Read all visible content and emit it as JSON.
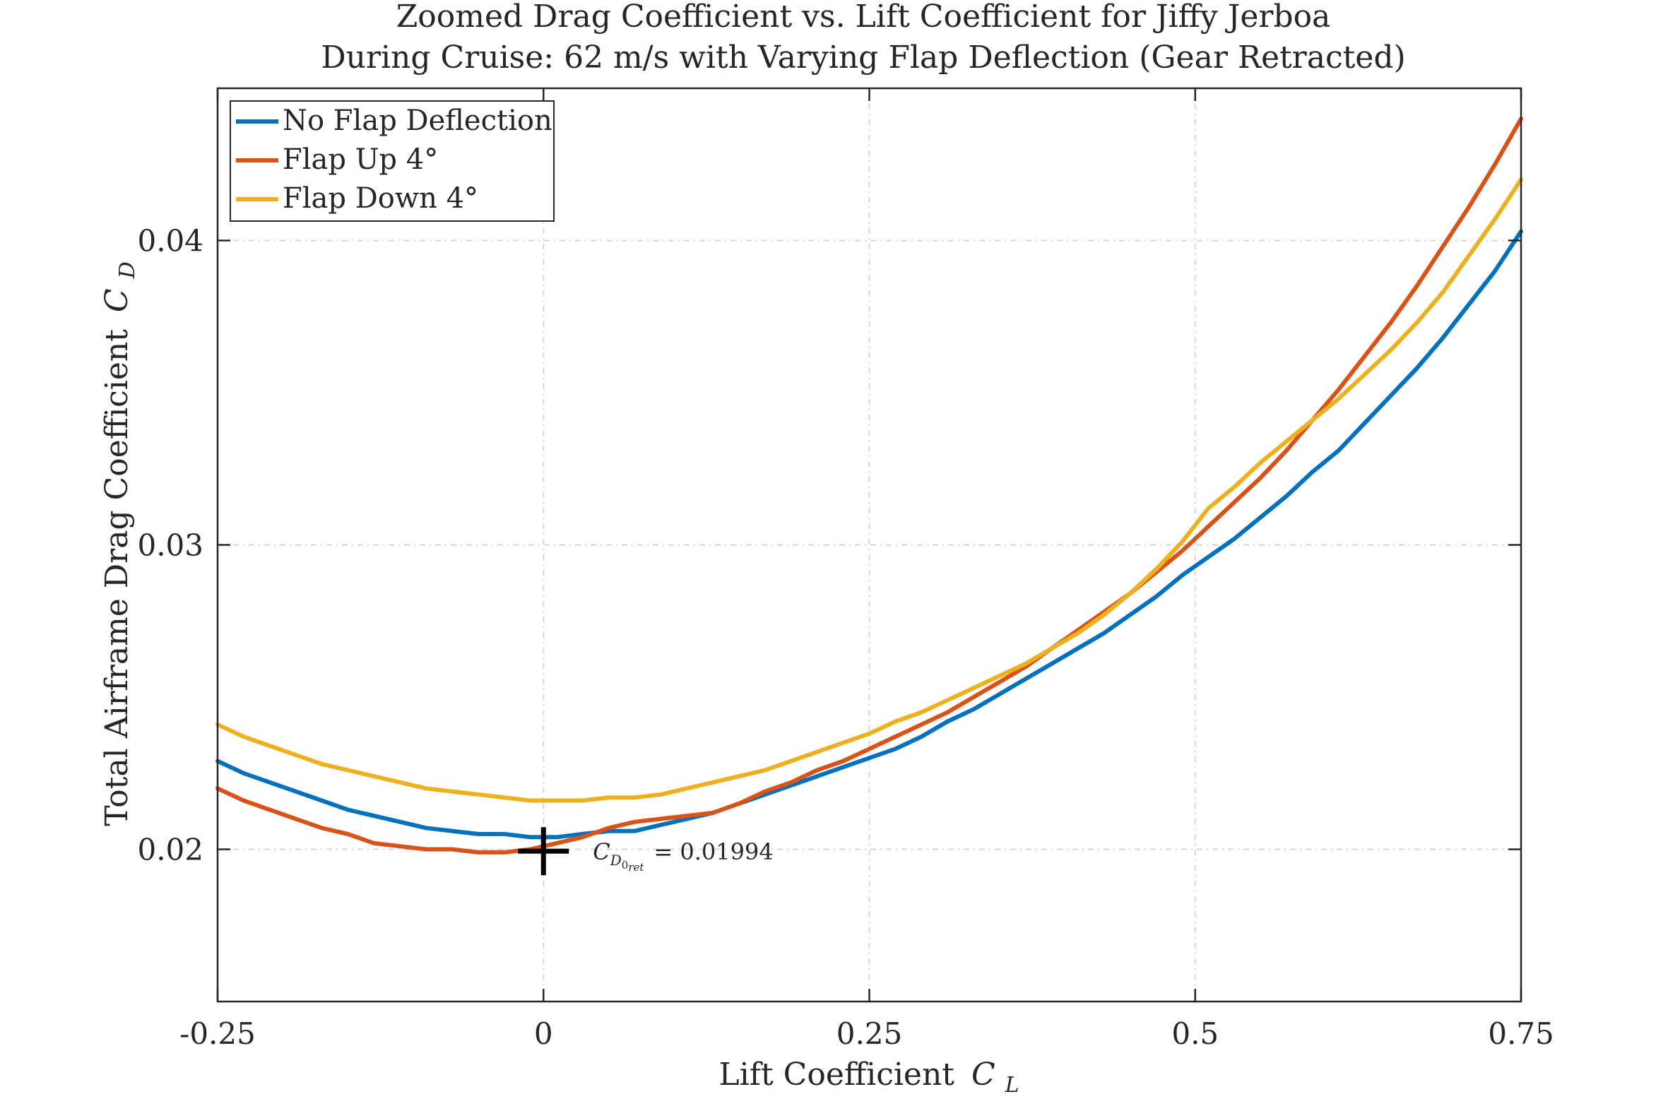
{
  "chart_data": {
    "type": "line",
    "title": [
      "Zoomed Drag Coefficient vs. Lift Coefficient for Jiffy Jerboa",
      "During Cruise: 62 m/s with Varying Flap Deflection (Gear Retracted)"
    ],
    "xlabel": "Lift Coefficient",
    "xlabel_symbol": "C",
    "xlabel_symbol_sub": "L",
    "ylabel": "Total Airframe Drag Coefficient",
    "ylabel_symbol": "C",
    "ylabel_symbol_sub": "D",
    "xlim": [
      -0.25,
      0.75
    ],
    "ylim": [
      0.015,
      0.045
    ],
    "xticks": [
      -0.25,
      0,
      0.25,
      0.5,
      0.75
    ],
    "xtick_labels": [
      "-0.25",
      "0",
      "0.25",
      "0.5",
      "0.75"
    ],
    "yticks": [
      0.02,
      0.03,
      0.04
    ],
    "ytick_labels": [
      "0.02",
      "0.03",
      "0.04"
    ],
    "grid": true,
    "legend_position": "top-left",
    "series": [
      {
        "name": "No Flap Deflection",
        "color": "#0072BD",
        "x": [
          -0.25,
          -0.23,
          -0.21,
          -0.19,
          -0.17,
          -0.15,
          -0.13,
          -0.11,
          -0.09,
          -0.07,
          -0.05,
          -0.03,
          -0.01,
          0.01,
          0.03,
          0.05,
          0.07,
          0.09,
          0.11,
          0.13,
          0.15,
          0.17,
          0.19,
          0.21,
          0.23,
          0.25,
          0.27,
          0.29,
          0.31,
          0.33,
          0.35,
          0.37,
          0.39,
          0.41,
          0.43,
          0.45,
          0.47,
          0.49,
          0.51,
          0.53,
          0.55,
          0.57,
          0.59,
          0.61,
          0.63,
          0.65,
          0.67,
          0.69,
          0.71,
          0.73,
          0.75
        ],
        "y": [
          0.0229,
          0.0225,
          0.0222,
          0.0219,
          0.0216,
          0.0213,
          0.0211,
          0.0209,
          0.0207,
          0.0206,
          0.0205,
          0.0205,
          0.0204,
          0.0204,
          0.0205,
          0.0206,
          0.0206,
          0.0208,
          0.021,
          0.0212,
          0.0215,
          0.0218,
          0.0221,
          0.0224,
          0.0227,
          0.023,
          0.0233,
          0.0237,
          0.0242,
          0.0246,
          0.0251,
          0.0256,
          0.0261,
          0.0266,
          0.0271,
          0.0277,
          0.0283,
          0.029,
          0.0296,
          0.0302,
          0.0309,
          0.0316,
          0.0324,
          0.0331,
          0.034,
          0.0349,
          0.0358,
          0.0368,
          0.0379,
          0.039,
          0.0403
        ]
      },
      {
        "name": "Flap Up 4°",
        "color": "#D95319",
        "x": [
          -0.25,
          -0.23,
          -0.21,
          -0.19,
          -0.17,
          -0.15,
          -0.13,
          -0.11,
          -0.09,
          -0.07,
          -0.05,
          -0.03,
          -0.01,
          0.01,
          0.03,
          0.05,
          0.07,
          0.09,
          0.11,
          0.13,
          0.15,
          0.17,
          0.19,
          0.21,
          0.23,
          0.25,
          0.27,
          0.29,
          0.31,
          0.33,
          0.35,
          0.37,
          0.39,
          0.41,
          0.43,
          0.45,
          0.47,
          0.49,
          0.51,
          0.53,
          0.55,
          0.57,
          0.59,
          0.61,
          0.63,
          0.65,
          0.67,
          0.69,
          0.71,
          0.73,
          0.75
        ],
        "y": [
          0.022,
          0.0216,
          0.0213,
          0.021,
          0.0207,
          0.0205,
          0.0202,
          0.0201,
          0.02,
          0.02,
          0.0199,
          0.0199,
          0.02,
          0.0202,
          0.0204,
          0.0207,
          0.0209,
          0.021,
          0.0211,
          0.0212,
          0.0215,
          0.0219,
          0.0222,
          0.0226,
          0.0229,
          0.0233,
          0.0237,
          0.0241,
          0.0245,
          0.025,
          0.0255,
          0.026,
          0.0266,
          0.0272,
          0.0278,
          0.0284,
          0.0291,
          0.0298,
          0.0306,
          0.0314,
          0.0322,
          0.0331,
          0.0341,
          0.0351,
          0.0362,
          0.0373,
          0.0385,
          0.0398,
          0.0411,
          0.0425,
          0.044
        ]
      },
      {
        "name": "Flap Down 4°",
        "color": "#EDB120",
        "x": [
          -0.25,
          -0.23,
          -0.21,
          -0.19,
          -0.17,
          -0.15,
          -0.13,
          -0.11,
          -0.09,
          -0.07,
          -0.05,
          -0.03,
          -0.01,
          0.01,
          0.03,
          0.05,
          0.07,
          0.09,
          0.11,
          0.13,
          0.15,
          0.17,
          0.19,
          0.21,
          0.23,
          0.25,
          0.27,
          0.29,
          0.31,
          0.33,
          0.35,
          0.37,
          0.39,
          0.41,
          0.43,
          0.45,
          0.47,
          0.49,
          0.51,
          0.53,
          0.55,
          0.57,
          0.59,
          0.61,
          0.63,
          0.65,
          0.67,
          0.69,
          0.71,
          0.73,
          0.75
        ],
        "y": [
          0.0241,
          0.0237,
          0.0234,
          0.0231,
          0.0228,
          0.0226,
          0.0224,
          0.0222,
          0.022,
          0.0219,
          0.0218,
          0.0217,
          0.0216,
          0.0216,
          0.0216,
          0.0217,
          0.0217,
          0.0218,
          0.022,
          0.0222,
          0.0224,
          0.0226,
          0.0229,
          0.0232,
          0.0235,
          0.0238,
          0.0242,
          0.0245,
          0.0249,
          0.0253,
          0.0257,
          0.0261,
          0.0266,
          0.0271,
          0.0277,
          0.0284,
          0.0292,
          0.0301,
          0.0312,
          0.0319,
          0.0327,
          0.0334,
          0.0341,
          0.0348,
          0.0356,
          0.0364,
          0.0373,
          0.0383,
          0.0395,
          0.0407,
          0.042
        ]
      }
    ],
    "annotations": [
      {
        "marker": "+",
        "marker_color": "#000000",
        "x": 0,
        "y": 0.01994,
        "label_symbol": "C",
        "label_sub": "D",
        "label_subsub": "0",
        "label_subsub2": "ret",
        "label_value": "= 0.01994"
      }
    ]
  }
}
